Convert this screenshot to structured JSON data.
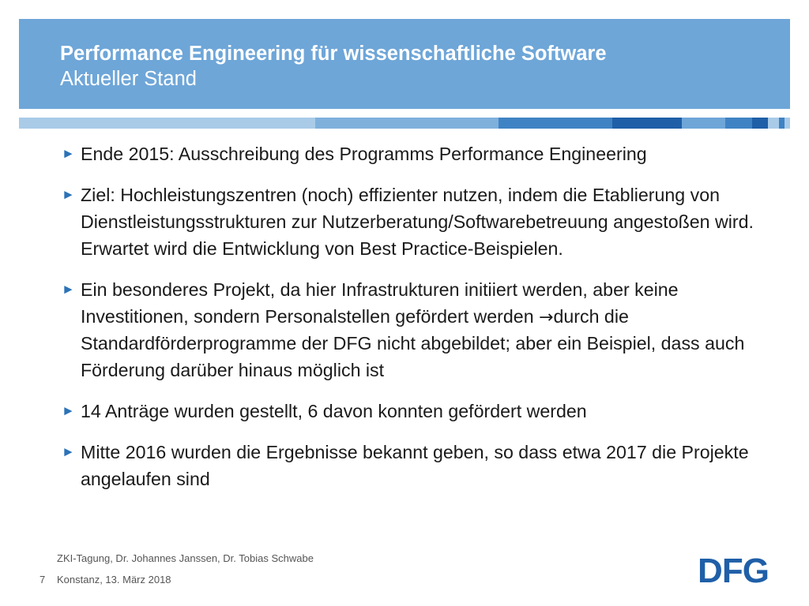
{
  "header": {
    "title": "Performance Engineering für wissenschaftliche Software",
    "subtitle": "Aktueller Stand"
  },
  "bullets": [
    {
      "marker": "►",
      "text": "Ende 2015: Ausschreibung des Programms Performance Engineering"
    },
    {
      "marker": "►",
      "text": "Ziel: Hochleistungszentren (noch) effizienter nutzen, indem die Etablierung von Dienstleistungsstrukturen zur Nutzerberatung/Softwarebetreuung angestoßen wird. Erwartet wird die Entwicklung von Best Practice-Beispielen."
    },
    {
      "marker": "►",
      "text_before_arrow": "Ein besonderes Projekt, da hier Infrastrukturen initiiert werden, aber keine Investitionen, sondern Personalstellen gefördert werden ",
      "arrow_icon": "→",
      "text_after_arrow": "durch die Standardförderprogramme der DFG nicht abgebildet; aber ein Beispiel, dass auch Förderung darüber hinaus möglich ist"
    },
    {
      "marker": "►",
      "text": "14 Anträge wurden gestellt, 6 davon konnten gefördert werden"
    },
    {
      "marker": "►",
      "text": "Mitte 2016 wurden die Ergebnisse bekannt geben, so dass etwa 2017 die Projekte angelaufen sind"
    }
  ],
  "footer": {
    "authors": "ZKI-Tagung, Dr. Johannes Janssen, Dr. Tobias Schwabe",
    "page_number": "7",
    "date": "Konstanz, 13. März 2018"
  },
  "logo": {
    "text": "DFG",
    "color": "#1f5fa8"
  },
  "colors": {
    "header_bg": "#6ea6d8",
    "bullet_marker": "#2b73b8",
    "stripe_light": "#a9cbe8",
    "stripe_mid": "#7fb0dc",
    "stripe_dark": "#3f83c4",
    "stripe_darkest": "#1f5fa8"
  }
}
